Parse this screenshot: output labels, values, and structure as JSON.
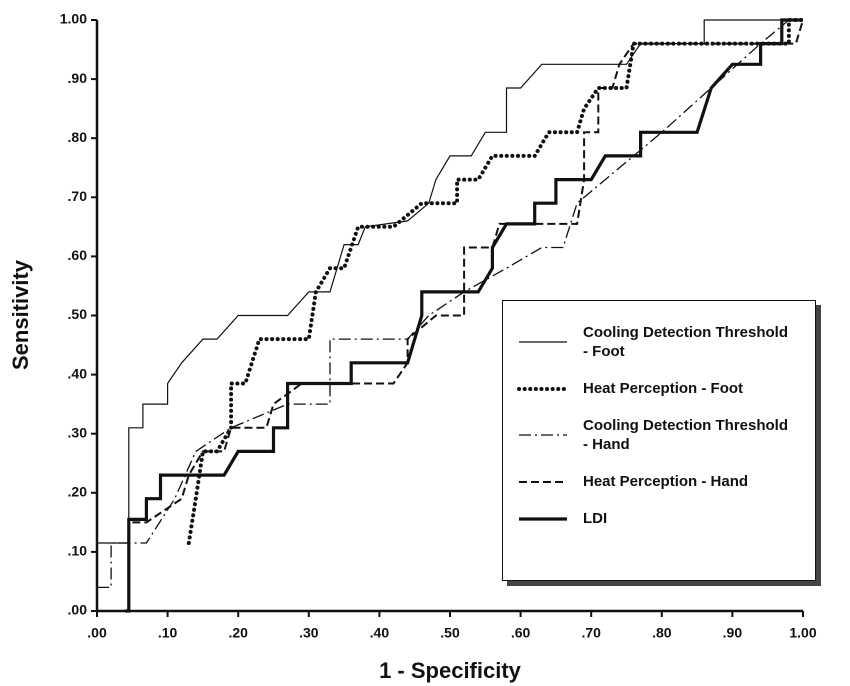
{
  "chart_data": {
    "type": "line",
    "xlabel": "1 - Specificity",
    "ylabel": "Sensitivity",
    "xlim": [
      0,
      1
    ],
    "ylim": [
      0,
      1
    ],
    "xticks": [
      {
        "value": 0,
        "label": ".00"
      },
      {
        "value": 0.1,
        "label": ".10"
      },
      {
        "value": 0.2,
        "label": ".20"
      },
      {
        "value": 0.3,
        "label": ".30"
      },
      {
        "value": 0.4,
        "label": ".40"
      },
      {
        "value": 0.5,
        "label": ".50"
      },
      {
        "value": 0.6,
        "label": ".60"
      },
      {
        "value": 0.7,
        "label": ".70"
      },
      {
        "value": 0.8,
        "label": ".80"
      },
      {
        "value": 0.9,
        "label": ".90"
      },
      {
        "value": 1,
        "label": "1.00"
      }
    ],
    "yticks": [
      {
        "value": 0,
        "label": ".00"
      },
      {
        "value": 0.1,
        "label": ".10"
      },
      {
        "value": 0.2,
        "label": ".20"
      },
      {
        "value": 0.3,
        "label": ".30"
      },
      {
        "value": 0.4,
        "label": ".40"
      },
      {
        "value": 0.5,
        "label": ".50"
      },
      {
        "value": 0.6,
        "label": ".60"
      },
      {
        "value": 0.7,
        "label": ".70"
      },
      {
        "value": 0.8,
        "label": ".80"
      },
      {
        "value": 0.9,
        "label": ".90"
      },
      {
        "value": 1,
        "label": "1.00"
      }
    ],
    "legend": "lower right",
    "series": [
      {
        "name": "Cooling Detection Threshold\n- Foot",
        "color": "#111111",
        "style": "thin",
        "x": [
          0,
          0.045,
          0.045,
          0.065,
          0.065,
          0.1,
          0.1,
          0.12,
          0.15,
          0.17,
          0.2,
          0.27,
          0.3,
          0.33,
          0.35,
          0.37,
          0.38,
          0.44,
          0.47,
          0.48,
          0.5,
          0.53,
          0.55,
          0.58,
          0.58,
          0.6,
          0.63,
          0.75,
          0.77,
          0.86,
          0.86,
          1
        ],
        "values": [
          0.115,
          0.115,
          0.31,
          0.31,
          0.35,
          0.35,
          0.385,
          0.42,
          0.46,
          0.46,
          0.5,
          0.5,
          0.54,
          0.54,
          0.62,
          0.62,
          0.65,
          0.66,
          0.69,
          0.73,
          0.77,
          0.77,
          0.81,
          0.81,
          0.885,
          0.885,
          0.925,
          0.925,
          0.96,
          0.96,
          1,
          1
        ]
      },
      {
        "name": "Heat Perception - Foot",
        "color": "#111111",
        "style": "dotted",
        "x": [
          0.13,
          0.14,
          0.15,
          0.17,
          0.19,
          0.19,
          0.21,
          0.23,
          0.3,
          0.31,
          0.33,
          0.35,
          0.37,
          0.42,
          0.46,
          0.51,
          0.51,
          0.54,
          0.56,
          0.62,
          0.64,
          0.68,
          0.69,
          0.71,
          0.75,
          0.76,
          0.98,
          0.98,
          1
        ],
        "values": [
          0.115,
          0.19,
          0.27,
          0.27,
          0.31,
          0.385,
          0.385,
          0.46,
          0.46,
          0.54,
          0.58,
          0.58,
          0.65,
          0.65,
          0.69,
          0.69,
          0.73,
          0.73,
          0.77,
          0.77,
          0.81,
          0.81,
          0.85,
          0.885,
          0.885,
          0.96,
          0.96,
          1,
          1
        ]
      },
      {
        "name": "Cooling Detection Threshold\n- Hand",
        "color": "#111111",
        "style": "dashdot",
        "x": [
          0,
          0.02,
          0.02,
          0.07,
          0.11,
          0.14,
          0.19,
          0.27,
          0.33,
          0.33,
          0.44,
          0.47,
          0.52,
          0.58,
          0.63,
          0.66,
          0.68,
          0.72,
          0.8,
          0.94,
          0.98,
          1
        ],
        "values": [
          0.04,
          0.04,
          0.115,
          0.115,
          0.19,
          0.27,
          0.31,
          0.35,
          0.35,
          0.46,
          0.46,
          0.5,
          0.54,
          0.58,
          0.615,
          0.615,
          0.69,
          0.73,
          0.81,
          0.96,
          1,
          1
        ]
      },
      {
        "name": "Heat Perception - Hand",
        "color": "#111111",
        "style": "dashed",
        "x": [
          0.05,
          0.07,
          0.12,
          0.13,
          0.15,
          0.18,
          0.19,
          0.24,
          0.25,
          0.29,
          0.42,
          0.44,
          0.44,
          0.48,
          0.52,
          0.52,
          0.56,
          0.57,
          0.68,
          0.69,
          0.69,
          0.71,
          0.71,
          0.73,
          0.74,
          0.76,
          0.99,
          1
        ],
        "values": [
          0.15,
          0.15,
          0.19,
          0.23,
          0.27,
          0.27,
          0.31,
          0.31,
          0.35,
          0.385,
          0.385,
          0.42,
          0.46,
          0.5,
          0.5,
          0.615,
          0.615,
          0.655,
          0.655,
          0.73,
          0.81,
          0.81,
          0.885,
          0.885,
          0.925,
          0.96,
          0.96,
          1
        ]
      },
      {
        "name": "LDI",
        "color": "#111111",
        "style": "thick",
        "x": [
          0.04,
          0.045,
          0.045,
          0.07,
          0.07,
          0.09,
          0.09,
          0.18,
          0.2,
          0.25,
          0.25,
          0.27,
          0.27,
          0.36,
          0.36,
          0.44,
          0.46,
          0.46,
          0.54,
          0.56,
          0.56,
          0.58,
          0.62,
          0.62,
          0.65,
          0.65,
          0.7,
          0.72,
          0.77,
          0.77,
          0.85,
          0.87,
          0.9,
          0.94,
          0.94,
          0.97,
          0.97,
          1
        ],
        "values": [
          0,
          0,
          0.155,
          0.155,
          0.19,
          0.19,
          0.23,
          0.23,
          0.27,
          0.27,
          0.31,
          0.31,
          0.385,
          0.385,
          0.42,
          0.42,
          0.5,
          0.54,
          0.54,
          0.58,
          0.615,
          0.655,
          0.655,
          0.69,
          0.69,
          0.73,
          0.73,
          0.77,
          0.77,
          0.81,
          0.81,
          0.885,
          0.925,
          0.925,
          0.96,
          0.96,
          1,
          1
        ]
      }
    ]
  }
}
